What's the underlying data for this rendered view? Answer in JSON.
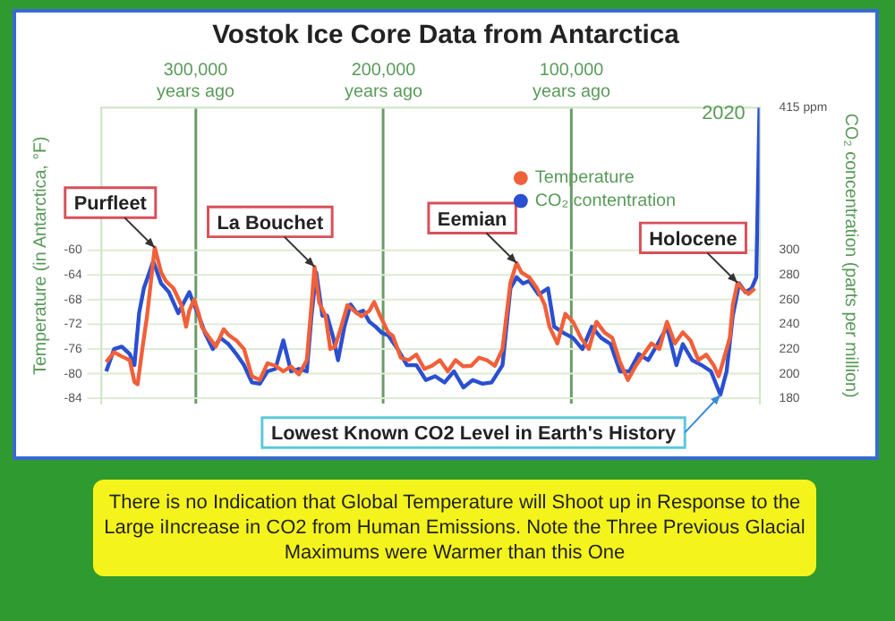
{
  "chart_data": {
    "type": "line",
    "title": "Vostok Ice Core Data from Antarctica",
    "ylabel": "Temperature (in Antarctica, °F)",
    "y2label": "CO₂ concentration (parts per million)",
    "xlim": [
      350000,
      0
    ],
    "xticks": [
      {
        "value": 300000,
        "label": "300,000 years ago"
      },
      {
        "value": 200000,
        "label": "200,000 years ago"
      },
      {
        "value": 100000,
        "label": "100,000 years ago"
      }
    ],
    "ylim": [
      -84.8,
      -37
    ],
    "yticks": [
      -84,
      -80,
      -76,
      -72,
      -68,
      -64,
      -60
    ],
    "y2lim": [
      176,
      415
    ],
    "y2ticks": [
      180,
      200,
      220,
      240,
      260,
      280,
      300,
      {
        "value": 415,
        "label": "415 ppm"
      }
    ],
    "grid": true,
    "legend": "top right",
    "marker": "none",
    "line_style": "solid",
    "series": [
      {
        "name": "Temperature",
        "color": "#f0603a",
        "type": "line",
        "x": [
          347500,
          343300,
          339200,
          335000,
          332500,
          330800,
          328300,
          325800,
          321700,
          318300,
          315800,
          311700,
          307500,
          305000,
          303300,
          300800,
          298300,
          296700,
          293300,
          289200,
          285000,
          282500,
          278300,
          274200,
          270000,
          265800,
          261700,
          257500,
          253300,
          249200,
          245000,
          240800,
          238300,
          236700,
          234200,
          230800,
          228300,
          225800,
          222500,
          219200,
          215800,
          211700,
          207500,
          205000,
          201700,
          197500,
          195000,
          190800,
          186700,
          182500,
          178300,
          174200,
          170000,
          165800,
          161700,
          157500,
          153300,
          149200,
          145000,
          140800,
          136700,
          132500,
          129200,
          126700,
          122500,
          118300,
          114200,
          111700,
          107500,
          103300,
          99200,
          95000,
          90800,
          86700,
          82500,
          78300,
          74200,
          70000,
          65800,
          61700,
          57500,
          53300,
          49200,
          45000,
          40800,
          36700,
          32500,
          28300,
          24200,
          21700,
          19200,
          15800,
          14200,
          11700,
          9200,
          5800,
          2500
        ],
        "values": [
          -78.1,
          -76.5,
          -77.2,
          -77.8,
          -81.3,
          -81.7,
          -76.0,
          -70.7,
          -59.6,
          -63.6,
          -65.0,
          -66.2,
          -68.9,
          -72.4,
          -69.8,
          -68.0,
          -70.3,
          -72.4,
          -73.9,
          -75.6,
          -72.8,
          -73.7,
          -74.6,
          -76.0,
          -80.4,
          -81.0,
          -78.3,
          -78.7,
          -79.6,
          -78.8,
          -80.1,
          -77.8,
          -68.9,
          -62.7,
          -68.5,
          -70.7,
          -76.0,
          -75.6,
          -72.4,
          -68.9,
          -69.8,
          -70.7,
          -69.8,
          -68.4,
          -70.7,
          -73.3,
          -73.9,
          -77.4,
          -77.8,
          -76.9,
          -79.2,
          -78.7,
          -77.8,
          -79.6,
          -77.8,
          -78.8,
          -78.7,
          -77.4,
          -77.8,
          -78.7,
          -76.0,
          -65.3,
          -62.1,
          -63.6,
          -64.4,
          -66.2,
          -68.9,
          -72.4,
          -75.1,
          -70.3,
          -71.6,
          -74.2,
          -76.0,
          -71.6,
          -73.3,
          -74.2,
          -78.1,
          -81.0,
          -78.7,
          -76.9,
          -75.1,
          -76.0,
          -71.6,
          -75.1,
          -73.3,
          -74.6,
          -77.8,
          -76.9,
          -78.7,
          -80.4,
          -77.8,
          -74.2,
          -68.9,
          -65.3,
          -66.2,
          -67.1,
          -66.2
        ]
      },
      {
        "name": "CO₂ contentration",
        "color": "#2a4fd0",
        "type": "line",
        "axis": "y2",
        "x": [
          347500,
          343300,
          339200,
          335000,
          332500,
          330000,
          327500,
          322500,
          318300,
          314200,
          309200,
          303300,
          300800,
          298300,
          295000,
          290800,
          286700,
          282500,
          278300,
          274200,
          270000,
          265800,
          261700,
          257500,
          253300,
          249200,
          245000,
          240800,
          238300,
          235800,
          232500,
          230000,
          226700,
          224200,
          220800,
          217500,
          214200,
          210800,
          207500,
          204200,
          200800,
          197500,
          192500,
          187500,
          182500,
          177500,
          172500,
          167500,
          162500,
          157500,
          152500,
          147500,
          142500,
          136700,
          132500,
          129200,
          125800,
          122500,
          117500,
          112500,
          109200,
          104200,
          99200,
          94200,
          89200,
          84200,
          79200,
          74200,
          69200,
          64200,
          59200,
          54200,
          49200,
          44200,
          40800,
          35800,
          30800,
          25800,
          20800,
          17500,
          14200,
          10800,
          7500,
          4200,
          1700,
          0
        ],
        "values": [
          202,
          220,
          222,
          216,
          207,
          249,
          269,
          291,
          273,
          266,
          249,
          266,
          256,
          247,
          233,
          220,
          229,
          224,
          216,
          207,
          193,
          192,
          202,
          204,
          227,
          202,
          204,
          202,
          247,
          282,
          247,
          247,
          229,
          211,
          238,
          256,
          249,
          251,
          242,
          238,
          233,
          231,
          220,
          207,
          207,
          195,
          198,
          193,
          202,
          189,
          195,
          192,
          193,
          207,
          269,
          278,
          273,
          275,
          264,
          269,
          238,
          233,
          229,
          220,
          238,
          229,
          224,
          202,
          202,
          216,
          211,
          224,
          238,
          207,
          224,
          211,
          207,
          202,
          183,
          202,
          247,
          273,
          266,
          269,
          278,
          415
        ]
      }
    ],
    "annotations": [
      {
        "text": "2020",
        "x": 0,
        "y": -37
      },
      {
        "text": "Purfleet",
        "x": 321700,
        "y": -59.6
      },
      {
        "text": "La Bouchet",
        "x": 236700,
        "y": -62.7
      },
      {
        "text": "Eemian",
        "x": 129200,
        "y": -62.1
      },
      {
        "text": "Holocene",
        "x": 11700,
        "y": -65.3
      },
      {
        "text": "Lowest Known CO2 Level in Earth's History",
        "x": 20800,
        "y": -83.4
      },
      "There is no Indication that Global Temperature will Shoot up in Response to the Large iIncrease in CO2 from Human Emissions. Note the Three Previous Glacial Maximums were Warmer than this One"
    ]
  }
}
